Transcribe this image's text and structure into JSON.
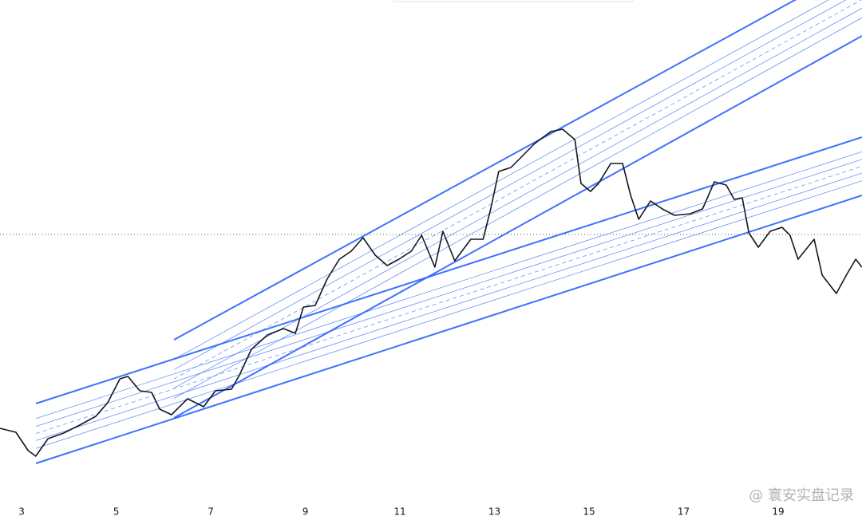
{
  "chart_data": {
    "type": "line",
    "x": [
      2.54,
      2.88,
      3.14,
      3.3,
      3.56,
      3.89,
      4.23,
      4.57,
      4.82,
      5.08,
      5.25,
      5.5,
      5.75,
      5.92,
      6.17,
      6.51,
      6.85,
      7.1,
      7.44,
      7.61,
      7.86,
      8.2,
      8.54,
      8.79,
      8.96,
      9.21,
      9.46,
      9.72,
      9.97,
      10.22,
      10.48,
      10.73,
      10.98,
      11.24,
      11.46,
      11.74,
      11.91,
      12.16,
      12.5,
      12.76,
      12.92,
      13.09,
      13.35,
      13.6,
      13.85,
      14.19,
      14.44,
      14.7,
      14.83,
      15.03,
      15.2,
      15.46,
      15.71,
      15.88,
      16.05,
      16.3,
      16.55,
      16.81,
      17.14,
      17.4,
      17.65,
      17.9,
      18.07,
      18.24,
      18.38,
      18.58,
      18.83,
      19.08,
      19.25,
      19.42,
      19.76,
      19.93,
      20.23,
      20.44,
      20.64,
      20.77
    ],
    "series": [
      {
        "color": "#131722",
        "values": [
          83,
          78,
          55,
          48,
          70,
          77,
          87,
          98,
          115,
          145,
          148,
          130,
          128,
          107,
          100,
          120,
          110,
          130,
          132,
          150,
          182,
          200,
          208,
          202,
          235,
          237,
          270,
          295,
          305,
          322,
          300,
          287,
          295,
          305,
          325,
          285,
          330,
          293,
          320,
          320,
          358,
          405,
          410,
          425,
          440,
          455,
          458,
          445,
          390,
          380,
          390,
          415,
          415,
          375,
          345,
          368,
          358,
          350,
          352,
          358,
          392,
          388,
          370,
          372,
          328,
          310,
          330,
          335,
          325,
          295,
          320,
          275,
          252,
          275,
          295,
          285
        ]
      }
    ],
    "xlim": [
      2.544,
      20.772
    ],
    "xticks": [
      3,
      5,
      7,
      9,
      11,
      13,
      15,
      17,
      19
    ],
    "ylim": [
      0,
      620
    ],
    "watermark": "@ 寰安实盘记录"
  }
}
